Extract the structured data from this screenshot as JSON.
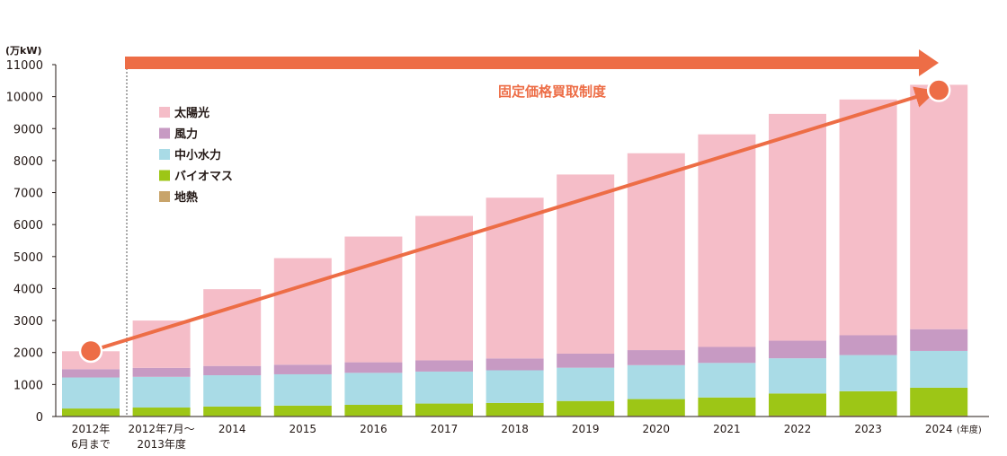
{
  "chart_data": {
    "type": "bar",
    "stacked": true,
    "y_unit_label": "(万kW)",
    "x_unit_label": "(年度)",
    "categories": [
      [
        "2012年",
        "6月まで"
      ],
      [
        "2012年7月〜",
        "2013年度"
      ],
      [
        "2014"
      ],
      [
        "2015"
      ],
      [
        "2016"
      ],
      [
        "2017"
      ],
      [
        "2018"
      ],
      [
        "2019"
      ],
      [
        "2020"
      ],
      [
        "2021"
      ],
      [
        "2022"
      ],
      [
        "2023"
      ],
      [
        "2024"
      ]
    ],
    "series": [
      {
        "name": "地熱",
        "color": "#c8a46a",
        "values": [
          20,
          20,
          20,
          20,
          25,
          25,
          25,
          25,
          25,
          25,
          30,
          30,
          30
        ]
      },
      {
        "name": "バイオマス",
        "color": "#9dc616",
        "values": [
          230,
          260,
          290,
          320,
          340,
          380,
          400,
          460,
          520,
          570,
          690,
          760,
          870
        ]
      },
      {
        "name": "中小水力",
        "color": "#a9dbe6",
        "values": [
          970,
          960,
          980,
          980,
          1000,
          1000,
          1020,
          1040,
          1060,
          1080,
          1100,
          1130,
          1150
        ]
      },
      {
        "name": "風力",
        "color": "#c79ac3",
        "values": [
          260,
          280,
          290,
          300,
          330,
          350,
          370,
          440,
          470,
          500,
          550,
          620,
          680
        ]
      },
      {
        "name": "太陽光",
        "color": "#f5bdc8",
        "values": [
          560,
          1480,
          2400,
          3330,
          3930,
          4515,
          5025,
          5600,
          6155,
          6645,
          7090,
          7370,
          7640
        ]
      }
    ],
    "legend_order": [
      "太陽光",
      "風力",
      "中小水力",
      "バイオマス",
      "地熱"
    ],
    "ylim": [
      0,
      11000
    ],
    "yticks": [
      0,
      1000,
      2000,
      3000,
      4000,
      5000,
      6000,
      7000,
      8000,
      9000,
      10000,
      11000
    ],
    "annotation": {
      "label": "固定価格買取制度",
      "color": "#ed6d46",
      "trend_start_value": 2050,
      "trend_end_value": 10200
    },
    "grid": false,
    "legend_position": "top-left"
  }
}
